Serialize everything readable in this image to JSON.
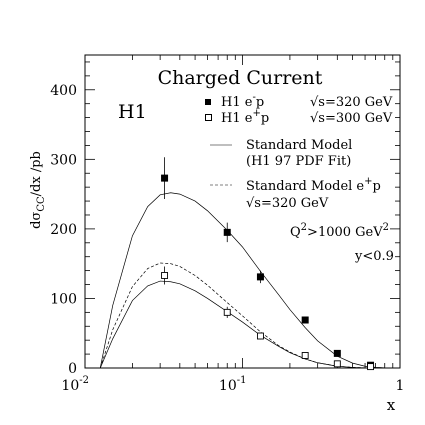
{
  "chart_data": {
    "type": "scatter",
    "title": "Charged Current",
    "experiment_label": "H1",
    "ylabel": "dσ",
    "ylabel_sub": "CC",
    "ylabel_tail": "/dx  /pb",
    "xlabel": "x",
    "x_scale": "log",
    "xlim": [
      0.01,
      1
    ],
    "ylim": [
      0,
      450
    ],
    "x_ticks": [
      {
        "value": 0.01,
        "base": "10",
        "exp": "-2"
      },
      {
        "value": 0.1,
        "base": "10",
        "exp": "-1"
      },
      {
        "value": 1,
        "base": "1",
        "exp": ""
      }
    ],
    "y_ticks": [
      0,
      100,
      200,
      300,
      400
    ],
    "series": [
      {
        "name": "H1 e⁻p",
        "name_main": "H1 e",
        "name_sup": "-",
        "name_tail": "p",
        "energy": "√s=320 GeV",
        "marker": "filled-square",
        "x": [
          0.032,
          0.08,
          0.13,
          0.25,
          0.4,
          0.65
        ],
        "y": [
          273,
          195,
          131,
          69,
          21,
          4
        ],
        "yerr": [
          30,
          14,
          9,
          5,
          3,
          2
        ]
      },
      {
        "name": "H1 e⁺p",
        "name_main": "H1 e",
        "name_sup": "+",
        "name_tail": "p",
        "energy": "√s=300 GeV",
        "marker": "open-square",
        "x": [
          0.032,
          0.08,
          0.13,
          0.25,
          0.4,
          0.65
        ],
        "y": [
          133,
          80,
          46,
          18,
          6,
          2
        ],
        "yerr": [
          13,
          8,
          5,
          3,
          2,
          1
        ]
      }
    ],
    "curves": [
      {
        "name": "Standard Model e⁻p",
        "style": "solid",
        "x": [
          0.0125,
          0.015,
          0.02,
          0.025,
          0.03,
          0.035,
          0.04,
          0.05,
          0.06,
          0.08,
          0.1,
          0.13,
          0.17,
          0.2,
          0.25,
          0.3,
          0.4,
          0.5,
          0.6,
          0.7,
          0.8,
          0.9
        ],
        "y": [
          0,
          90,
          190,
          232,
          249,
          252,
          250,
          240,
          226,
          198,
          174,
          139,
          105,
          84,
          58,
          39,
          17,
          7,
          2.5,
          1,
          0.3,
          0
        ]
      },
      {
        "name": "Standard Model e⁺p",
        "style": "dashed",
        "x": [
          0.0125,
          0.015,
          0.02,
          0.025,
          0.03,
          0.035,
          0.04,
          0.05,
          0.06,
          0.08,
          0.1,
          0.13,
          0.17,
          0.2,
          0.25,
          0.3,
          0.4,
          0.5,
          0.6,
          0.7,
          0.8,
          0.9
        ],
        "y": [
          0,
          55,
          117,
          143,
          151,
          150,
          146,
          133,
          119,
          94,
          75,
          52,
          32,
          23,
          13,
          7.5,
          2.7,
          0.9,
          0.3,
          0.1,
          0,
          0
        ]
      },
      {
        "name": "Standard Model e⁺p √s=300 GeV",
        "style": "solid",
        "x": [
          0.0125,
          0.015,
          0.02,
          0.025,
          0.03,
          0.035,
          0.04,
          0.05,
          0.06,
          0.08,
          0.1,
          0.13,
          0.17,
          0.2,
          0.25,
          0.3,
          0.4,
          0.5,
          0.6,
          0.7,
          0.8,
          0.9
        ],
        "y": [
          0,
          42,
          97,
          118,
          125,
          124,
          121,
          111,
          100,
          81,
          66,
          47,
          31,
          22,
          13,
          7.5,
          2.5,
          0.8,
          0.2,
          0,
          0,
          0
        ]
      }
    ],
    "legend": {
      "sm_line1": "Standard Model",
      "sm_line2": "(H1 97 PDF Fit)",
      "sm_ep_main": "Standard Model e",
      "sm_ep_sup": "+",
      "sm_ep_tail": "p",
      "sm_ep_energy": "√s=320 GeV"
    },
    "annotations": {
      "q2_main": "Q",
      "q2_sup": "2",
      "q2_mid": ">1000 GeV",
      "q2_sup2": "2",
      "ycut": "y<0.9"
    }
  }
}
